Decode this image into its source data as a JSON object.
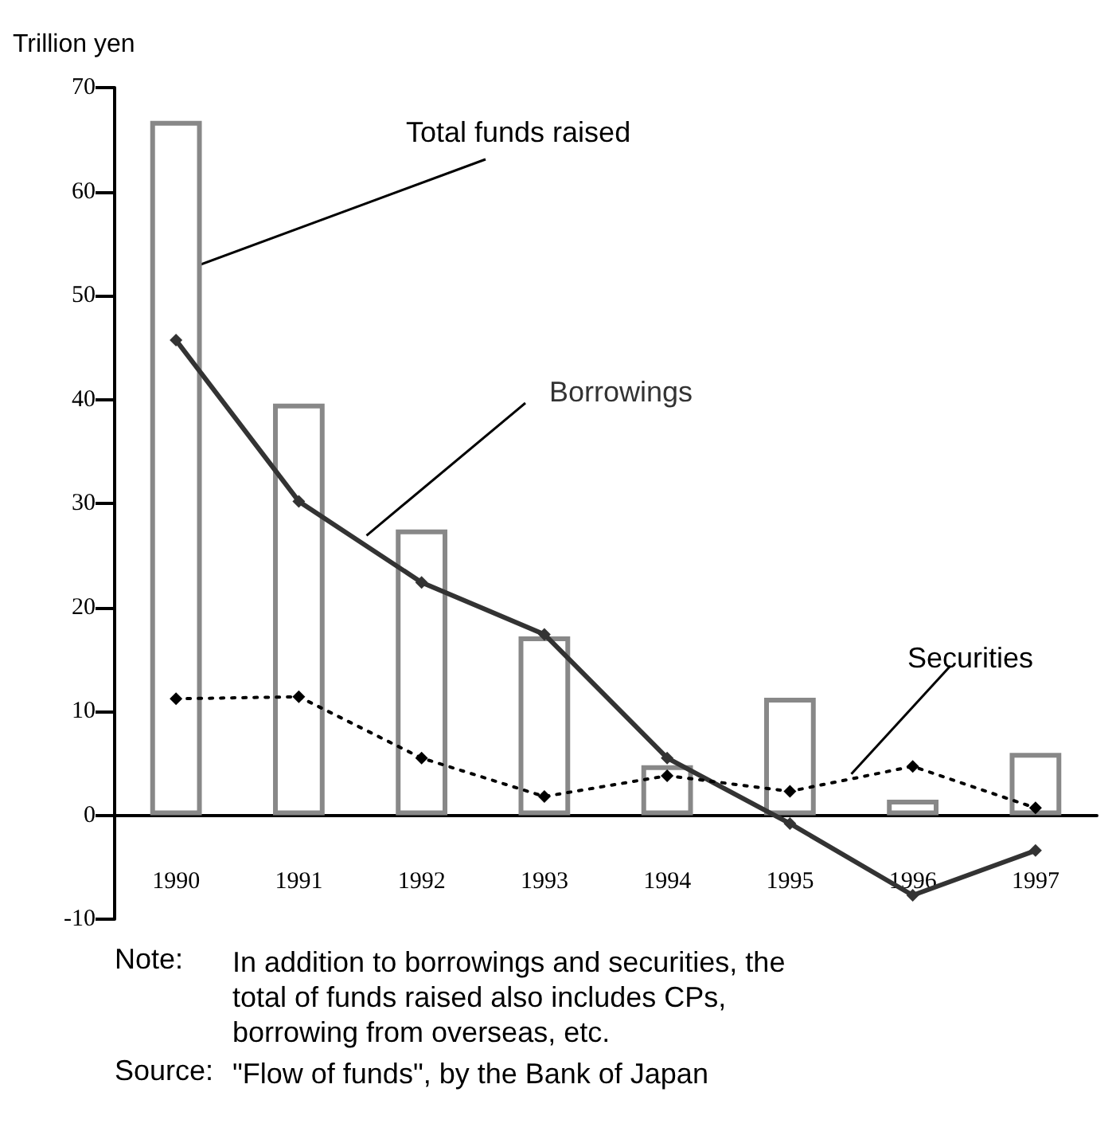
{
  "chart_data": {
    "type": "bar",
    "ylabel": "Trillion yen",
    "categories": [
      "1990",
      "1991",
      "1992",
      "1993",
      "1994",
      "1995",
      "1996",
      "1997"
    ],
    "series": [
      {
        "name": "Total funds raised",
        "color": "#888888",
        "values": [
          66.8,
          39.6,
          27.5,
          17.2,
          4.8,
          11.3,
          1.5,
          6.0
        ]
      },
      {
        "name": "Borrowings",
        "type": "line",
        "color": "#333333",
        "line_style": "solid",
        "values": [
          45.7,
          30.2,
          22.4,
          17.4,
          5.5,
          -0.8,
          -7.7,
          -3.4
        ]
      },
      {
        "name": "Securities",
        "type": "line",
        "color": "#000000",
        "line_style": "dotted",
        "values": [
          11.2,
          11.4,
          5.5,
          1.8,
          3.8,
          2.3,
          4.7,
          0.7
        ]
      }
    ],
    "ylim": [
      -10,
      70
    ],
    "yticks": [
      -10,
      0,
      10,
      20,
      30,
      40,
      50,
      60,
      70
    ],
    "grid": false,
    "legend": false,
    "marker": "diamond",
    "annotations": [
      "Note: In addition to borrowings and securities, the total of funds raised also includes CPs, borrowing from overseas, etc.",
      "Source: \"Flow of funds\", by the Bank of Japan"
    ]
  }
}
